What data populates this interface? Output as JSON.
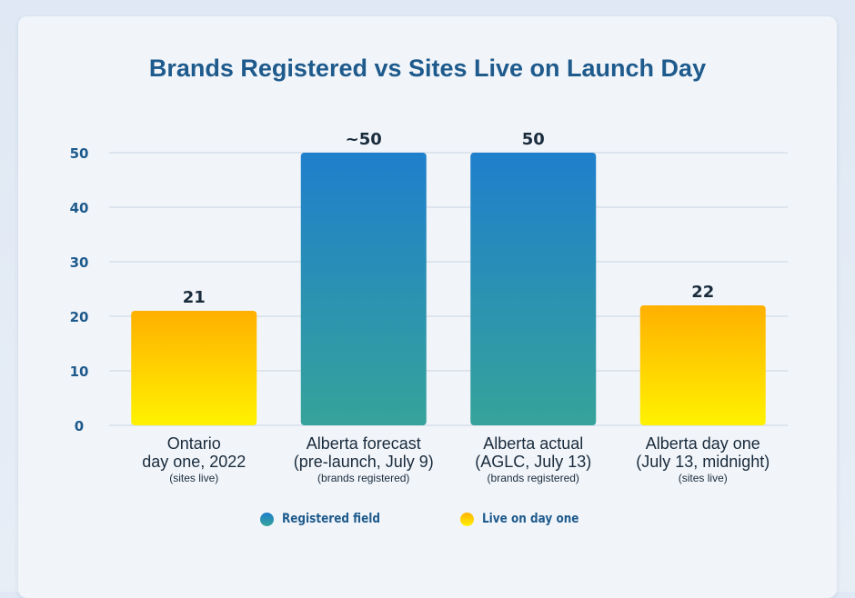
{
  "chart_data": {
    "type": "bar",
    "title": "Brands Registered vs Sites Live on Launch Day",
    "ylim": [
      0,
      50
    ],
    "yticks": [
      0,
      10,
      20,
      30,
      40,
      50
    ],
    "grid": true,
    "legend_placement": "bottom",
    "categories": [
      {
        "lines": [
          "Ontario",
          "day one, 2022"
        ],
        "note": "(sites live)"
      },
      {
        "lines": [
          "Alberta forecast",
          "(pre-launch, July 9)"
        ],
        "note": "(brands registered)"
      },
      {
        "lines": [
          "Alberta actual",
          "(AGLC, July 13)"
        ],
        "note": "(brands registered)"
      },
      {
        "lines": [
          "Alberta day one",
          "(July 13, midnight)"
        ],
        "note": "(sites live)"
      }
    ],
    "values": [
      21,
      50,
      50,
      22
    ],
    "value_labels": [
      "21",
      "~50",
      "50",
      "22"
    ],
    "bar_series": [
      "live",
      "registered",
      "registered",
      "live"
    ],
    "series": [
      {
        "key": "registered",
        "name": "Registered field",
        "color_top": "#1f7fcc",
        "color_bottom": "#36a39a"
      },
      {
        "key": "live",
        "name": "Live on day one",
        "color_top": "#ffb000",
        "color_bottom": "#fff200"
      }
    ]
  },
  "colors": {
    "title": "#1e5a8c",
    "axis_text": "#1e5a8c",
    "value_label": "#1a2b3c",
    "gridline": "#c9d3e3",
    "background": "#f1f5fa"
  }
}
